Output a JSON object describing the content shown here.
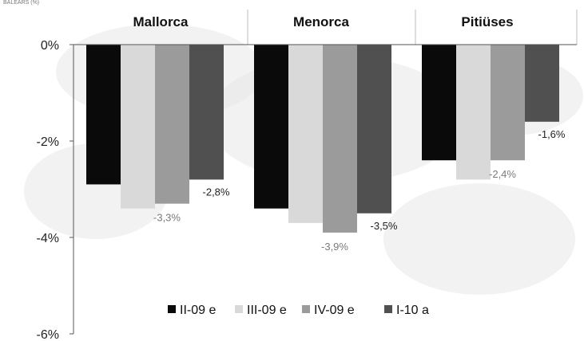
{
  "corner_note": "BALEARS (%)",
  "colors": {
    "series": [
      "#0a0a0a",
      "#d9d9d9",
      "#9b9b9b",
      "#505050"
    ],
    "label_dark": "#222222",
    "label_light": "#7a7a7a",
    "axis": "#555555",
    "grid": "#bdbdbd",
    "watermark": "#e7e7e7"
  },
  "chart_data": {
    "type": "bar",
    "categories": [
      "Mallorca",
      "Menorca",
      "Pitiüses"
    ],
    "series": [
      {
        "name": "II-09 e",
        "values": [
          -2.9,
          -3.4,
          -2.4
        ]
      },
      {
        "name": "III-09 e",
        "values": [
          -3.4,
          -3.7,
          -2.8
        ]
      },
      {
        "name": "IV-09 e",
        "values": [
          -3.3,
          -3.9,
          -2.4
        ]
      },
      {
        "name": "I-10 a",
        "values": [
          -2.8,
          -3.5,
          -1.6
        ]
      }
    ],
    "data_labels": [
      {
        "category": 0,
        "series": 2,
        "text": "-3,3%",
        "tone": "light"
      },
      {
        "category": 0,
        "series": 3,
        "text": "-2,8%",
        "tone": "dark"
      },
      {
        "category": 1,
        "series": 2,
        "text": "-3,9%",
        "tone": "light"
      },
      {
        "category": 1,
        "series": 3,
        "text": "-3,5%",
        "tone": "dark"
      },
      {
        "category": 2,
        "series": 2,
        "text": "-2,4%",
        "tone": "light"
      },
      {
        "category": 2,
        "series": 3,
        "text": "-1,6%",
        "tone": "dark"
      }
    ],
    "y_ticks": [
      {
        "value": 0,
        "label": "0%"
      },
      {
        "value": -2,
        "label": "-2%"
      },
      {
        "value": -4,
        "label": "-4%"
      },
      {
        "value": -6,
        "label": "-6%"
      }
    ],
    "ylim": [
      -6,
      0
    ],
    "category_labels_position": "top",
    "legend_position": "bottom-center",
    "grid": "vertical-category-separators",
    "title": "",
    "xlabel": "",
    "ylabel": ""
  }
}
